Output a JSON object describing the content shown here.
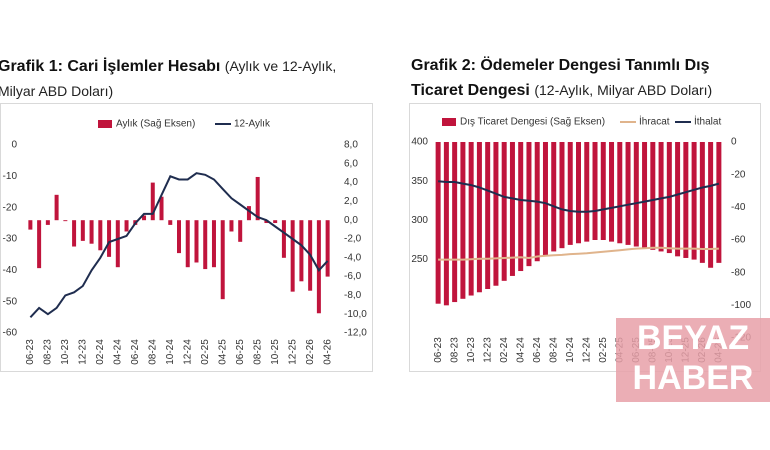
{
  "chart_data": [
    {
      "type": "combo",
      "title": "Grafik 1: Cari İşlemler Hesabı",
      "subtitle": "(Aylık ve 12-Aylık, Milyar ABD Doları)",
      "categories": [
        "06-23",
        null,
        "08-23",
        null,
        "10-23",
        null,
        "12-23",
        null,
        "02-24",
        null,
        "04-24",
        null,
        "06-24",
        null,
        "08-24",
        null,
        "10-24",
        null,
        "12-24",
        null,
        "02-25",
        null,
        "04-25",
        null,
        "06-25",
        null,
        "08-25",
        null,
        "10-25",
        null,
        "12-25",
        null,
        "02-26",
        null,
        "04-26"
      ],
      "series": [
        {
          "name": "Aylık (Sağ Eksen)",
          "type": "bar",
          "axis": "y2",
          "color": "#c0143c",
          "values": [
            -1,
            -5.1,
            -0.5,
            2.7,
            -0.1,
            -2.8,
            -2.2,
            -2.5,
            -3.2,
            -3.9,
            -5.0,
            -1.2,
            -0.5,
            0.5,
            4.0,
            2.5,
            -0.5,
            -3.5,
            -5.0,
            -4.5,
            -5.2,
            -5.0,
            -8.4,
            -1.2,
            -2.3,
            1.5,
            4.6,
            -0.3,
            -0.3,
            -4.0,
            -7.6,
            -6.5,
            -7.5,
            -9.9,
            -6.0
          ]
        },
        {
          "name": "12-Aylık",
          "type": "line",
          "axis": "y",
          "color": "#1f2d4f",
          "values": [
            -55,
            -52,
            -54,
            -52,
            -48,
            -47,
            -45,
            -40,
            -36,
            -31,
            -30,
            -29,
            -25,
            -22,
            -22,
            -16,
            -10,
            -11,
            -11,
            -9,
            -9.5,
            -11,
            -14,
            -17,
            -19,
            -21,
            -23,
            -24,
            -26,
            -28,
            -30,
            -32,
            -35,
            -40,
            -37
          ]
        }
      ],
      "ylim": [
        -60,
        0
      ],
      "yticks": [
        0,
        -10,
        -20,
        -30,
        -40,
        -50,
        -60
      ],
      "y2lim": [
        -12,
        8
      ],
      "y2ticks": [
        {
          "value": 8,
          "label": "8,0"
        },
        {
          "value": 6,
          "label": "6,0"
        },
        {
          "value": 4,
          "label": "4,0"
        },
        {
          "value": 2,
          "label": "2,0"
        },
        {
          "value": 0,
          "label": "0,0"
        },
        {
          "value": -2,
          "label": "-2,0"
        },
        {
          "value": -4,
          "label": "-4,0"
        },
        {
          "value": -6,
          "label": "-6,0"
        },
        {
          "value": -8,
          "label": "-8,0"
        },
        {
          "value": -10,
          "label": "-10,0"
        },
        {
          "value": -12,
          "label": "-12,0"
        }
      ],
      "grid": false
    },
    {
      "type": "combo",
      "title": "Grafik 2: Ödemeler Dengesi Tanımlı Dış Ticaret Dengesi",
      "subtitle": "(12-Aylık, Milyar ABD Doları)",
      "categories": [
        "06-23",
        null,
        "08-23",
        null,
        "10-23",
        null,
        "12-23",
        null,
        "02-24",
        null,
        "04-24",
        null,
        "06-24",
        null,
        "08-24",
        null,
        "10-24",
        null,
        "12-24",
        null,
        "02-25",
        null,
        "04-25",
        null,
        "06-25",
        null,
        "08-25",
        null,
        "10-25",
        null,
        "12-25",
        null,
        "02-26",
        null,
        "04-26"
      ],
      "series": [
        {
          "name": "Dış Ticaret Dengesi (Sağ Eksen)",
          "type": "bar",
          "axis": "y2",
          "color": "#c0143c",
          "values": [
            -99,
            -100,
            -98,
            -96,
            -94,
            -92,
            -90,
            -88,
            -85,
            -82,
            -79,
            -76,
            -73,
            -70,
            -67,
            -65,
            -63,
            -62,
            -61,
            -60,
            -60,
            -61,
            -62,
            -63,
            -64,
            -65,
            -66,
            -67,
            -68,
            -70,
            -71,
            -72,
            -74,
            -77,
            -74
          ]
        },
        {
          "name": "İhracat",
          "type": "line",
          "axis": "y",
          "color": "#e0b48c",
          "values": [
            250,
            250,
            250,
            250,
            250.5,
            251,
            251,
            251.5,
            252,
            252.5,
            253,
            252,
            254,
            255,
            255.5,
            256,
            257,
            257.5,
            258,
            259,
            260,
            261,
            262,
            263,
            264,
            264.5,
            265,
            265,
            264.5,
            264,
            264,
            264,
            263.5,
            263.5,
            264
          ]
        },
        {
          "name": "İthalat",
          "type": "line",
          "axis": "y",
          "color": "#1f2d4f",
          "values": [
            350,
            349,
            349,
            347,
            345,
            342,
            338,
            334,
            330,
            328,
            326,
            325,
            324,
            322,
            318,
            314,
            312,
            311,
            311,
            312,
            314,
            316,
            318,
            320,
            322,
            324,
            326,
            328,
            330,
            333,
            336,
            339,
            342,
            344,
            347
          ]
        }
      ],
      "ylim": [
        150,
        400
      ],
      "yticks": [
        250,
        300,
        350,
        400
      ],
      "y2lim": [
        -120,
        0
      ],
      "y2ticks": [
        0,
        -20,
        -40,
        -60,
        -80,
        -100,
        -120
      ],
      "grid": false
    }
  ],
  "watermark": [
    "BEYAZ",
    "HABER"
  ]
}
